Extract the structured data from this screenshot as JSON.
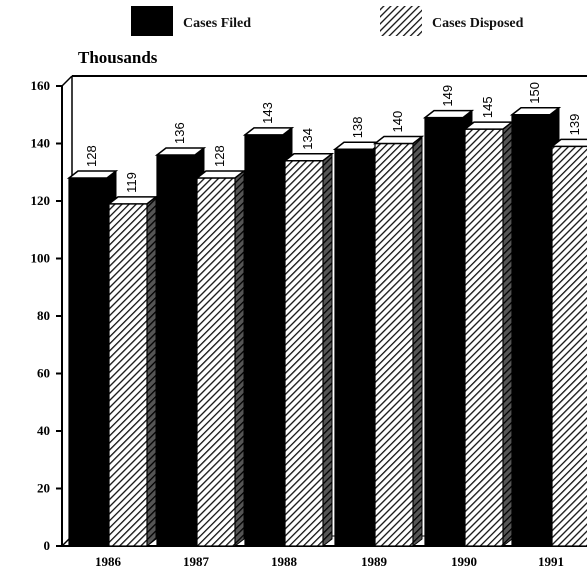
{
  "chart_data": {
    "type": "bar",
    "unit_label": "Thousands",
    "categories": [
      "1986",
      "1987",
      "1988",
      "1989",
      "1990",
      "1991"
    ],
    "series": [
      {
        "name": "Cases Filed",
        "values": [
          128,
          136,
          143,
          138,
          149,
          150
        ],
        "pattern": "solid"
      },
      {
        "name": "Cases Disposed",
        "values": [
          119,
          128,
          134,
          140,
          145,
          139
        ],
        "pattern": "hatched"
      }
    ],
    "ylim": [
      0,
      160
    ],
    "yticks": [
      0,
      20,
      40,
      60,
      80,
      100,
      120,
      140,
      160
    ],
    "grid": false,
    "legend_position": "top",
    "colors": {
      "filled": "#000000",
      "disposed_hatch": "#1a1a1a",
      "background": "#ffffff"
    }
  }
}
